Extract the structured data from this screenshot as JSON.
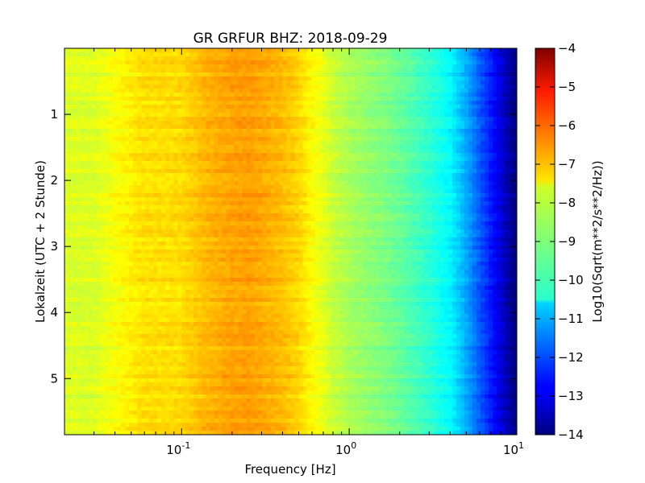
{
  "chart_data": {
    "type": "heatmap",
    "title": "GR GRFUR BHZ: 2018-09-29",
    "xlabel": "Frequency [Hz]",
    "ylabel": "Lokalzeit (UTC + 2 Stunde)",
    "x_scale": "log",
    "xlim": [
      0.02,
      10
    ],
    "ylim": [
      5.85,
      0
    ],
    "x_ticks": [
      {
        "value": 0.1,
        "base": "10",
        "exp": "-1"
      },
      {
        "value": 1,
        "base": "10",
        "exp": "0"
      },
      {
        "value": 10,
        "base": "10",
        "exp": "1"
      }
    ],
    "y_ticks": [
      {
        "value": 1,
        "label": "1"
      },
      {
        "value": 2,
        "label": "2"
      },
      {
        "value": 3,
        "label": "3"
      },
      {
        "value": 4,
        "label": "4"
      },
      {
        "value": 5,
        "label": "5"
      }
    ],
    "colorbar": {
      "label": "Log10(Sqrt(m**2/s**2/Hz))",
      "colormap": "jet",
      "range": [
        -14,
        -4
      ],
      "ticks": [
        {
          "value": -4,
          "label": "−4"
        },
        {
          "value": -5,
          "label": "−5"
        },
        {
          "value": -6,
          "label": "−6"
        },
        {
          "value": -7,
          "label": "−7"
        },
        {
          "value": -8,
          "label": "−8"
        },
        {
          "value": -9,
          "label": "−9"
        },
        {
          "value": -10,
          "label": "−10"
        },
        {
          "value": -11,
          "label": "−11"
        },
        {
          "value": -12,
          "label": "−12"
        },
        {
          "value": -13,
          "label": "−13"
        },
        {
          "value": -14,
          "label": "−14"
        }
      ]
    },
    "spectrum_profile": {
      "freq_hz": [
        0.02,
        0.03,
        0.04,
        0.06,
        0.08,
        0.1,
        0.14,
        0.2,
        0.25,
        0.3,
        0.4,
        0.5,
        0.6,
        0.7,
        0.8,
        1.0,
        1.5,
        2.0,
        3.0,
        4.0,
        5.0,
        6.0,
        7.0,
        8.0,
        9.0,
        10.0
      ],
      "log10_amplitude": [
        -8.1,
        -8.1,
        -7.8,
        -7.45,
        -7.45,
        -7.4,
        -7.05,
        -6.85,
        -6.8,
        -6.9,
        -7.1,
        -7.35,
        -7.75,
        -8.0,
        -8.3,
        -8.6,
        -8.95,
        -9.25,
        -9.8,
        -10.3,
        -11.1,
        -11.9,
        -12.5,
        -13.1,
        -13.7,
        -14.0
      ]
    }
  }
}
